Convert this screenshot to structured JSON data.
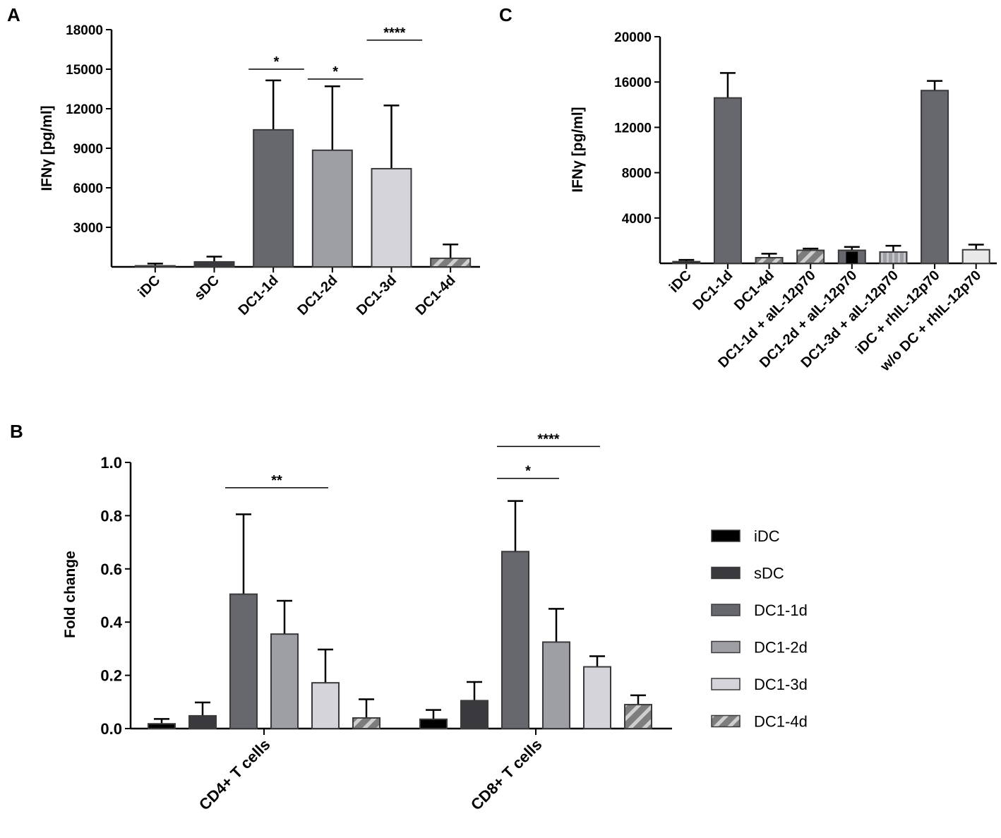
{
  "colors": {
    "iDC": "#000000",
    "sDC": "#3a3a3e",
    "DC1-1d": "#67686e",
    "DC1-2d": "#9d9fa5",
    "DC1-3d": "#d4d4da",
    "DC1-4d": "#7d7d7d",
    "hatch_light": "#cfcfcf",
    "white": "#ffffff",
    "light_fill": "#e9e9ea"
  },
  "chart_data": [
    {
      "id": "A",
      "panel_label": "A",
      "type": "bar",
      "ylabel": "IFNγ [pg/ml]",
      "ylim": [
        0,
        18000
      ],
      "yticks": [
        3000,
        6000,
        9000,
        12000,
        15000,
        18000
      ],
      "categories": [
        "iDC",
        "sDC",
        "DC1-1d",
        "DC1-2d",
        "DC1-3d",
        "DC1-4d"
      ],
      "values": [
        80,
        380,
        10400,
        8850,
        7450,
        650
      ],
      "errors": [
        170,
        400,
        3750,
        4850,
        4800,
        1050
      ],
      "fills": [
        "iDC",
        "sDC",
        "DC1-1d",
        "DC1-2d",
        "DC1-3d",
        "DC1-4d"
      ],
      "patterns": [
        "solid",
        "solid",
        "solid",
        "solid",
        "solid",
        "hatch"
      ],
      "significance": [
        {
          "from": 2,
          "to": 3,
          "label": "*",
          "y": 15000
        },
        {
          "from": 3,
          "to": 4,
          "label": "*",
          "y": 14250
        },
        {
          "from": 4,
          "to": 5,
          "label": "****",
          "y": 17200
        }
      ]
    },
    {
      "id": "C",
      "panel_label": "C",
      "type": "bar",
      "ylabel": "IFNγ [pg/ml]",
      "ylim": [
        0,
        20000
      ],
      "yticks": [
        4000,
        8000,
        12000,
        16000,
        20000
      ],
      "categories": [
        "iDC",
        "DC1-1d",
        "DC1-4d",
        "DC1-1d + aIL-12p70",
        "DC1-2d + aIL-12p70",
        "DC1-3d + aIL-12p70",
        "iDC + rhIL-12p70",
        "w/o DC + rhIL-12p70"
      ],
      "values": [
        150,
        14600,
        500,
        1150,
        1150,
        1000,
        15250,
        1200
      ],
      "errors": [
        150,
        2200,
        350,
        150,
        300,
        550,
        850,
        450
      ],
      "fills": [
        "iDC",
        "DC1-1d",
        "DC1-4d",
        "DC1-4d",
        "DC1-1d",
        "DC1-2d",
        "DC1-1d",
        "light_fill"
      ],
      "patterns": [
        "solid",
        "solid",
        "hatch",
        "hatch",
        "blackcenter",
        "stripes",
        "solid",
        "solid"
      ]
    },
    {
      "id": "B",
      "panel_label": "B",
      "type": "bar",
      "ylabel": "Fold change",
      "ylim": [
        0,
        1.0
      ],
      "yticks": [
        0.0,
        0.2,
        0.4,
        0.6,
        0.8,
        1.0
      ],
      "ytick_labels": [
        "0.0",
        "0.2",
        "0.4",
        "0.6",
        "0.8",
        "1.0"
      ],
      "groups": [
        "CD4+ T cells",
        "CD8+ T cells"
      ],
      "series": [
        {
          "name": "iDC",
          "values": [
            0.018,
            0.035
          ],
          "errors": [
            0.018,
            0.035
          ],
          "pattern": "solid"
        },
        {
          "name": "sDC",
          "values": [
            0.048,
            0.105
          ],
          "errors": [
            0.05,
            0.07
          ],
          "pattern": "solid"
        },
        {
          "name": "DC1-1d",
          "values": [
            0.505,
            0.665
          ],
          "errors": [
            0.3,
            0.19
          ],
          "pattern": "solid"
        },
        {
          "name": "DC1-2d",
          "values": [
            0.355,
            0.325
          ],
          "errors": [
            0.125,
            0.125
          ],
          "pattern": "solid"
        },
        {
          "name": "DC1-3d",
          "values": [
            0.172,
            0.232
          ],
          "errors": [
            0.125,
            0.04
          ],
          "pattern": "solid"
        },
        {
          "name": "DC1-4d",
          "values": [
            0.04,
            0.09
          ],
          "errors": [
            0.07,
            0.035
          ],
          "pattern": "hatch"
        }
      ],
      "significance": [
        {
          "group": 0,
          "from": 2,
          "to": 4,
          "label": "**",
          "y": 0.905
        },
        {
          "group": 1,
          "from": 2,
          "to": 3,
          "label": "*",
          "y": 0.94
        },
        {
          "group": 1,
          "from": 2,
          "to": 4,
          "label": "****",
          "y": 1.06
        }
      ],
      "legend": [
        "iDC",
        "sDC",
        "DC1-1d",
        "DC1-2d",
        "DC1-3d",
        "DC1-4d"
      ]
    }
  ]
}
